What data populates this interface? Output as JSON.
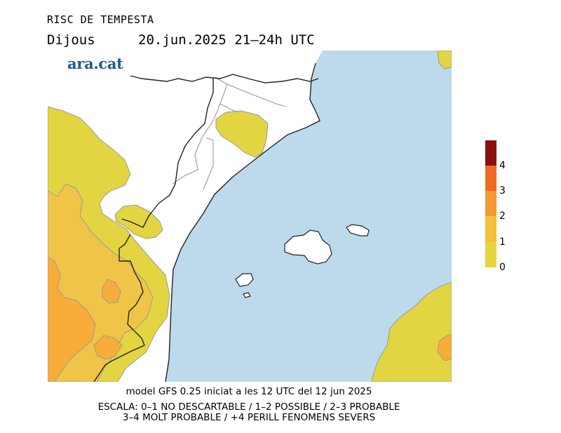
{
  "title": "RISC DE TEMPESTA",
  "subtitle": {
    "day": "Dijous",
    "datetime": "20.jun.2025 21–24h UTC"
  },
  "logo_text": "ara.cat",
  "legend": {
    "labels": [
      "0",
      "1",
      "2",
      "3",
      "4"
    ],
    "colors": [
      "#e6d43e",
      "#f5be3c",
      "#f39a31",
      "#ef6a24",
      "#d92c1c",
      "#8e0f0f"
    ]
  },
  "map_colors": {
    "sea": "#bcdaec",
    "land_clear": "#ffffff",
    "risk_0_1": "#e3d542",
    "risk_1_2": "#f0c446",
    "risk_2_3": "#f8ad3a",
    "borders": "#222222",
    "admin_borders": "#9a9a9a"
  },
  "footer": {
    "line1": "model GFS 0.25 iniciat a les 12 UTC del 12 jun 2025",
    "line2": "ESCALA: 0–1 NO DESCARTABLE / 1–2 POSSIBLE / 2–3 PROBABLE",
    "line3": "3–4 MOLT PROBABLE / +4 PERILL FENOMENS SEVERS"
  }
}
